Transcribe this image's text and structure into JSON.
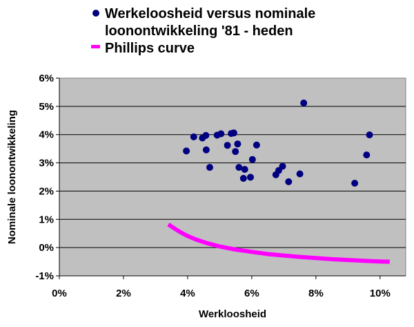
{
  "chart_data": {
    "type": "scatter",
    "title": "",
    "xlabel": "Werkloosheid",
    "ylabel": "Nominale loonontwikkeling",
    "xlim": [
      0,
      10.8
    ],
    "ylim": [
      -1,
      6
    ],
    "x_ticks": [
      "0%",
      "2%",
      "4%",
      "6%",
      "8%",
      "10%"
    ],
    "y_ticks": [
      "6%",
      "5%",
      "4%",
      "3%",
      "2%",
      "1%",
      "0%",
      "-1%"
    ],
    "grid": "horizontal",
    "legend_position": "top",
    "colors": {
      "plot_background": "#c0c0c0",
      "scatter": "#000080",
      "curve": "#ff00ff"
    },
    "series": [
      {
        "name": "Werkeloosheid versus nominale loonontwikkeling '81 - heden",
        "style": "markers",
        "points": [
          [
            3.96,
            3.42
          ],
          [
            4.19,
            3.92
          ],
          [
            4.46,
            3.88
          ],
          [
            4.57,
            3.97
          ],
          [
            4.58,
            3.46
          ],
          [
            4.69,
            2.84
          ],
          [
            4.92,
            3.98
          ],
          [
            5.04,
            4.03
          ],
          [
            5.24,
            3.62
          ],
          [
            5.36,
            4.04
          ],
          [
            5.44,
            4.06
          ],
          [
            5.49,
            3.4
          ],
          [
            5.56,
            3.67
          ],
          [
            5.6,
            2.84
          ],
          [
            5.74,
            2.45
          ],
          [
            5.78,
            2.77
          ],
          [
            5.96,
            2.49
          ],
          [
            6.02,
            3.12
          ],
          [
            6.15,
            3.63
          ],
          [
            6.75,
            2.58
          ],
          [
            6.84,
            2.73
          ],
          [
            6.96,
            2.88
          ],
          [
            7.15,
            2.33
          ],
          [
            7.5,
            2.61
          ],
          [
            7.62,
            5.12
          ],
          [
            9.21,
            2.28
          ],
          [
            9.58,
            3.28
          ],
          [
            9.67,
            3.99
          ]
        ]
      },
      {
        "name": "Phillips curve",
        "style": "line",
        "points": [
          [
            3.4,
            0.82
          ],
          [
            3.6,
            0.67
          ],
          [
            3.8,
            0.53
          ],
          [
            4.0,
            0.41
          ],
          [
            4.3,
            0.27
          ],
          [
            4.6,
            0.16
          ],
          [
            5.0,
            0.04
          ],
          [
            5.5,
            -0.07
          ],
          [
            6.0,
            -0.15
          ],
          [
            6.5,
            -0.23
          ],
          [
            7.0,
            -0.28
          ],
          [
            7.5,
            -0.33
          ],
          [
            8.0,
            -0.37
          ],
          [
            8.5,
            -0.41
          ],
          [
            9.0,
            -0.44
          ],
          [
            9.5,
            -0.47
          ],
          [
            10.0,
            -0.49
          ],
          [
            10.3,
            -0.5
          ]
        ]
      }
    ]
  }
}
